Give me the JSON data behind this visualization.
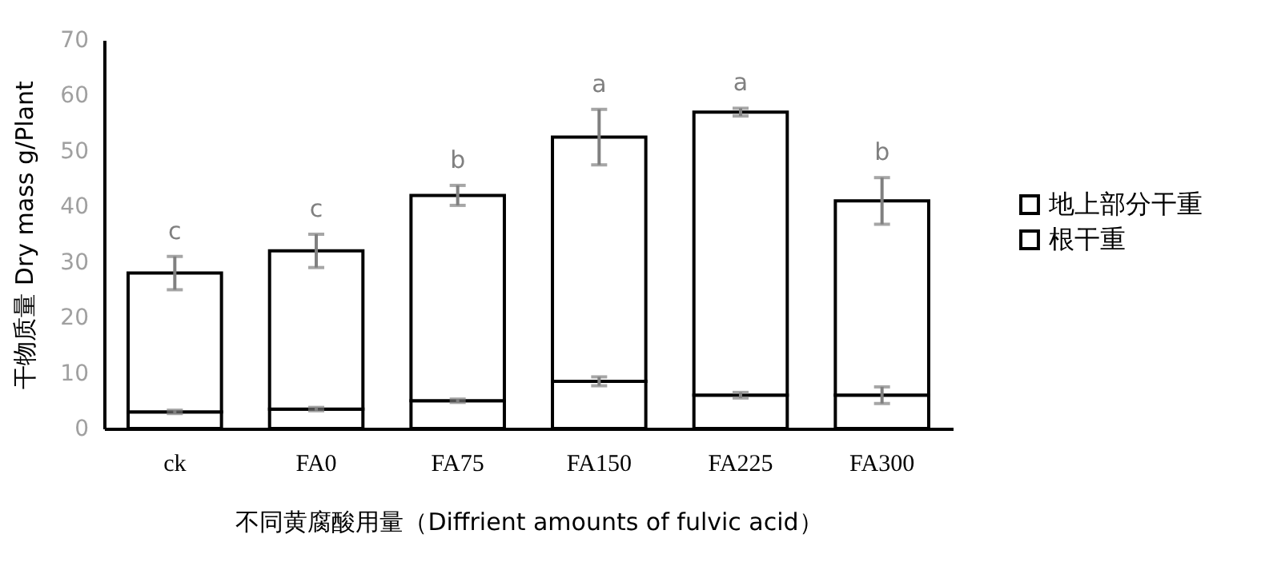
{
  "chart_data": {
    "type": "bar",
    "stacked": true,
    "ylabel": "干物质量 Dry mass g/Plant",
    "xlabel": "不同黄腐酸用量（Diffrient amounts of fulvic acid）",
    "categories": [
      "ck",
      "FA0",
      "FA75",
      "FA150",
      "FA225",
      "FA300"
    ],
    "series": [
      {
        "name": "根干重",
        "color": "#ffffff",
        "values": [
          3,
          3.5,
          5,
          8.5,
          6,
          6
        ],
        "errors": [
          0.3,
          0.3,
          0.3,
          0.8,
          0.5,
          1.5
        ]
      },
      {
        "name": "地上部分干重",
        "color": "#ffffff",
        "values": [
          25,
          28.5,
          37,
          44,
          51,
          35
        ],
        "errors": [
          3,
          3,
          1.8,
          5,
          0.7,
          4.2
        ]
      }
    ],
    "ylim": [
      0,
      70
    ],
    "yticks": [
      0,
      10,
      20,
      30,
      40,
      50,
      60,
      70
    ],
    "grid": false,
    "legend": "right",
    "annotations": [
      {
        "text": "c",
        "x": "ck",
        "y": 28
      },
      {
        "text": "c",
        "x": "FA0",
        "y": 32
      },
      {
        "text": "b",
        "x": "FA75",
        "y": 42
      },
      {
        "text": "a",
        "x": "FA150",
        "y": 52.5
      },
      {
        "text": "a",
        "x": "FA225",
        "y": 57
      },
      {
        "text": "b",
        "x": "FA300",
        "y": 41
      }
    ]
  }
}
